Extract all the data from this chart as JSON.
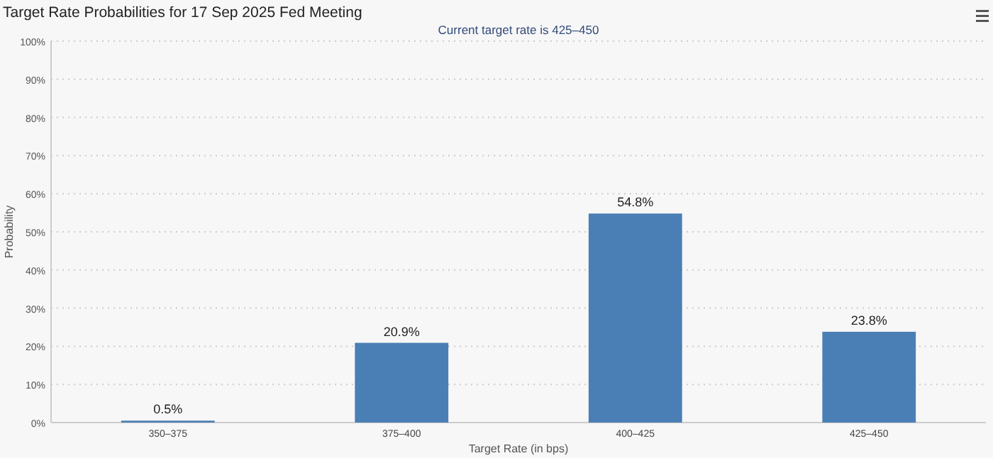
{
  "chart_data": {
    "type": "bar",
    "title": "Target Rate Probabilities for 17 Sep 2025 Fed Meeting",
    "subtitle": "Current target rate is 425–450",
    "xlabel": "Target Rate (in bps)",
    "ylabel": "Probability",
    "categories": [
      "350–375",
      "375–400",
      "400–425",
      "425–450"
    ],
    "values": [
      0.5,
      20.9,
      54.8,
      23.8
    ],
    "value_labels": [
      "0.5%",
      "20.9%",
      "54.8%",
      "23.8%"
    ],
    "color": "#4a7fb5",
    "ylim": [
      0,
      100
    ],
    "yticks": [
      {
        "value": 0,
        "label": "0%"
      },
      {
        "value": 10,
        "label": "10%"
      },
      {
        "value": 20,
        "label": "20%"
      },
      {
        "value": 30,
        "label": "30%"
      },
      {
        "value": 40,
        "label": "40%"
      },
      {
        "value": 50,
        "label": "50%"
      },
      {
        "value": 60,
        "label": "60%"
      },
      {
        "value": 70,
        "label": "70%"
      },
      {
        "value": 80,
        "label": "80%"
      },
      {
        "value": 90,
        "label": "90%"
      },
      {
        "value": 100,
        "label": "100%"
      }
    ],
    "grid": "y"
  }
}
